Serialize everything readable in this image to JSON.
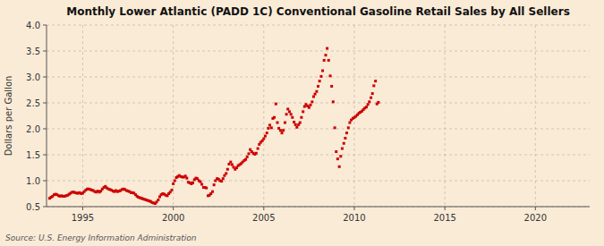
{
  "chart_data": {
    "type": "scatter",
    "title": "Monthly Lower Atlantic (PADD 1C) Conventional Gasoline Retail Sales by All Sellers",
    "y_label": "Dollars per Gallon",
    "source": "Source: U.S. Energy Information Administration",
    "color": "#cc0000",
    "marker": "square",
    "grid": true,
    "xlim": [
      1993.0,
      2023.0
    ],
    "ylim": [
      0.5,
      4.0
    ],
    "xticks": [
      1995,
      2000,
      2005,
      2010,
      2015,
      2020
    ],
    "yticks": [
      0.5,
      {
        "value": 1.0,
        "label": "1.0"
      },
      1.5,
      {
        "value": 2.0,
        "label": "2.0"
      },
      2.5,
      {
        "value": 3.0,
        "label": "3.0"
      },
      3.5,
      {
        "value": 4.0,
        "label": "4.0"
      }
    ],
    "x": [
      1993.17,
      1993.25,
      1993.33,
      1993.42,
      1993.5,
      1993.58,
      1993.67,
      1993.75,
      1993.83,
      1993.92,
      1994.0,
      1994.08,
      1994.17,
      1994.25,
      1994.33,
      1994.42,
      1994.5,
      1994.58,
      1994.67,
      1994.75,
      1994.83,
      1994.92,
      1995.0,
      1995.08,
      1995.17,
      1995.25,
      1995.33,
      1995.42,
      1995.5,
      1995.58,
      1995.67,
      1995.75,
      1995.83,
      1995.92,
      1996.0,
      1996.08,
      1996.17,
      1996.25,
      1996.33,
      1996.42,
      1996.5,
      1996.58,
      1996.67,
      1996.75,
      1996.83,
      1996.92,
      1997.0,
      1997.08,
      1997.17,
      1997.25,
      1997.33,
      1997.42,
      1997.5,
      1997.58,
      1997.67,
      1997.75,
      1997.83,
      1997.92,
      1998.0,
      1998.08,
      1998.17,
      1998.25,
      1998.33,
      1998.42,
      1998.5,
      1998.58,
      1998.67,
      1998.75,
      1998.83,
      1998.92,
      1999.0,
      1999.08,
      1999.17,
      1999.25,
      1999.33,
      1999.42,
      1999.5,
      1999.58,
      1999.67,
      1999.75,
      1999.83,
      1999.92,
      2000.0,
      2000.08,
      2000.17,
      2000.25,
      2000.33,
      2000.42,
      2000.5,
      2000.58,
      2000.67,
      2000.75,
      2000.83,
      2000.92,
      2001.0,
      2001.08,
      2001.17,
      2001.25,
      2001.33,
      2001.42,
      2001.5,
      2001.58,
      2001.67,
      2001.75,
      2001.83,
      2001.92,
      2002.0,
      2002.08,
      2002.17,
      2002.25,
      2002.33,
      2002.42,
      2002.5,
      2002.58,
      2002.67,
      2002.75,
      2002.83,
      2002.92,
      2003.0,
      2003.08,
      2003.17,
      2003.25,
      2003.33,
      2003.42,
      2003.5,
      2003.58,
      2003.67,
      2003.75,
      2003.83,
      2003.92,
      2004.0,
      2004.08,
      2004.17,
      2004.25,
      2004.33,
      2004.42,
      2004.5,
      2004.58,
      2004.67,
      2004.75,
      2004.83,
      2004.92,
      2005.0,
      2005.08,
      2005.17,
      2005.25,
      2005.33,
      2005.42,
      2005.5,
      2005.58,
      2005.67,
      2005.75,
      2005.83,
      2005.92,
      2006.0,
      2006.08,
      2006.17,
      2006.25,
      2006.33,
      2006.42,
      2006.5,
      2006.58,
      2006.67,
      2006.75,
      2006.83,
      2006.92,
      2007.0,
      2007.08,
      2007.17,
      2007.25,
      2007.33,
      2007.42,
      2007.5,
      2007.58,
      2007.67,
      2007.75,
      2007.83,
      2007.92,
      2008.0,
      2008.08,
      2008.17,
      2008.25,
      2008.33,
      2008.42,
      2008.5,
      2008.58,
      2008.67,
      2008.75,
      2008.83,
      2008.92,
      2009.0,
      2009.08,
      2009.17,
      2009.25,
      2009.33,
      2009.42,
      2009.5,
      2009.58,
      2009.67,
      2009.75,
      2009.83,
      2009.92,
      2010.0,
      2010.08,
      2010.17,
      2010.25,
      2010.33,
      2010.42,
      2010.5,
      2010.58,
      2010.67,
      2010.75,
      2010.83,
      2010.92,
      2011.0,
      2011.08,
      2011.17,
      2011.25,
      2011.33
    ],
    "values": [
      0.66,
      0.68,
      0.7,
      0.73,
      0.74,
      0.73,
      0.71,
      0.7,
      0.71,
      0.7,
      0.7,
      0.71,
      0.72,
      0.74,
      0.76,
      0.78,
      0.78,
      0.77,
      0.76,
      0.76,
      0.77,
      0.75,
      0.76,
      0.79,
      0.82,
      0.84,
      0.84,
      0.83,
      0.82,
      0.81,
      0.79,
      0.78,
      0.8,
      0.78,
      0.8,
      0.84,
      0.87,
      0.89,
      0.86,
      0.84,
      0.83,
      0.82,
      0.8,
      0.79,
      0.81,
      0.79,
      0.8,
      0.81,
      0.83,
      0.84,
      0.83,
      0.81,
      0.8,
      0.79,
      0.77,
      0.77,
      0.76,
      0.73,
      0.7,
      0.68,
      0.67,
      0.66,
      0.65,
      0.64,
      0.63,
      0.62,
      0.61,
      0.6,
      0.58,
      0.57,
      0.56,
      0.59,
      0.63,
      0.69,
      0.73,
      0.75,
      0.74,
      0.72,
      0.71,
      0.75,
      0.78,
      0.82,
      0.94,
      1.0,
      1.06,
      1.08,
      1.1,
      1.08,
      1.07,
      1.07,
      1.09,
      1.05,
      0.97,
      0.96,
      0.94,
      0.96,
      1.02,
      1.05,
      1.04,
      1.0,
      0.98,
      0.93,
      0.87,
      0.87,
      0.86,
      0.71,
      0.72,
      0.75,
      0.79,
      0.92,
      1.0,
      1.04,
      1.03,
      1.0,
      0.99,
      1.04,
      1.1,
      1.14,
      1.22,
      1.32,
      1.36,
      1.31,
      1.26,
      1.22,
      1.25,
      1.29,
      1.31,
      1.33,
      1.36,
      1.39,
      1.41,
      1.46,
      1.52,
      1.6,
      1.56,
      1.53,
      1.51,
      1.53,
      1.62,
      1.7,
      1.74,
      1.77,
      1.81,
      1.86,
      1.92,
      2.01,
      2.07,
      2.02,
      2.2,
      2.22,
      2.48,
      2.12,
      2.01,
      1.97,
      1.92,
      1.97,
      2.12,
      2.28,
      2.38,
      2.33,
      2.28,
      2.22,
      2.13,
      2.08,
      2.03,
      2.08,
      2.12,
      2.22,
      2.33,
      2.43,
      2.47,
      2.44,
      2.41,
      2.46,
      2.52,
      2.62,
      2.67,
      2.72,
      2.82,
      2.92,
      3.01,
      3.12,
      3.32,
      3.42,
      3.55,
      3.32,
      3.02,
      2.82,
      2.52,
      2.02,
      1.56,
      1.42,
      1.27,
      1.47,
      1.62,
      1.72,
      1.82,
      1.92,
      2.02,
      2.12,
      2.17,
      2.2,
      2.22,
      2.24,
      2.27,
      2.3,
      2.32,
      2.34,
      2.37,
      2.4,
      2.42,
      2.47,
      2.52,
      2.6,
      2.68,
      2.83,
      2.92,
      2.48,
      2.51
    ]
  }
}
